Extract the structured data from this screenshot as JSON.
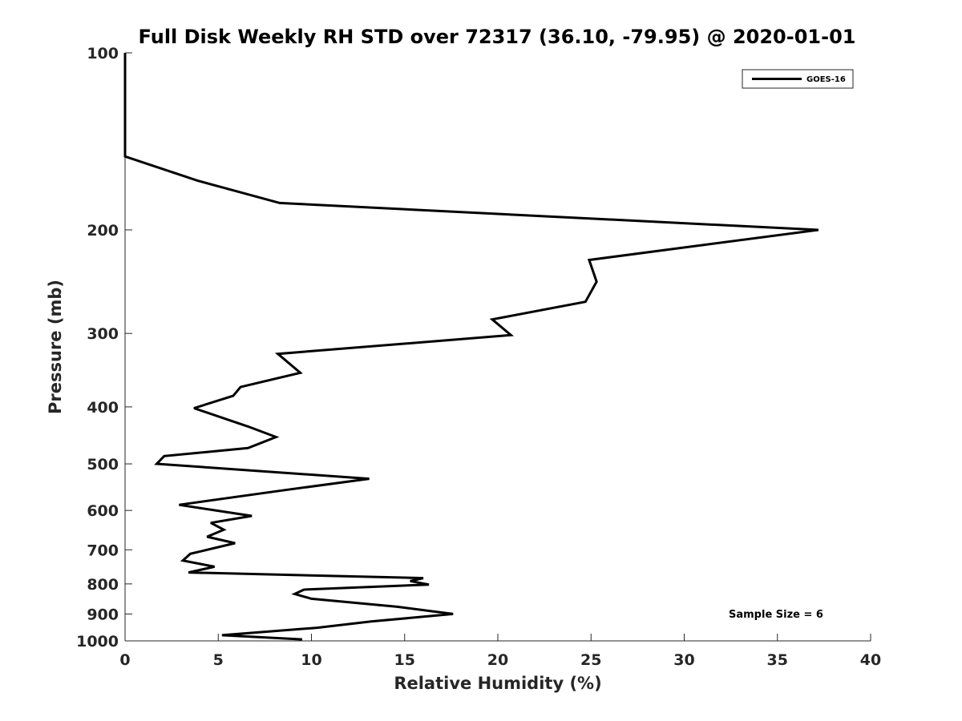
{
  "chart_data": {
    "type": "line",
    "title": "Full Disk Weekly RH STD over 72317 (36.10, -79.95) @ 2020-01-01",
    "xlabel": "Relative Humidity (%)",
    "ylabel": "Pressure (mb)",
    "xlim": [
      0,
      40
    ],
    "ylim": [
      100,
      1000
    ],
    "yscale": "log",
    "y_reversed": true,
    "xticks": [
      0,
      5,
      10,
      15,
      20,
      25,
      30,
      35,
      40
    ],
    "yticks": [
      100,
      200,
      300,
      400,
      500,
      600,
      700,
      800,
      900,
      1000
    ],
    "grid": false,
    "legend_position": "top-right",
    "annotation": "Sample Size = 6",
    "series": [
      {
        "name": "GOES-16",
        "color": "#000000",
        "x": [
          0,
          0,
          0,
          3.9,
          8.3,
          37.2,
          24.9,
          25.3,
          24.7,
          19.7,
          20.7,
          8.2,
          9.4,
          6.2,
          5.8,
          3.7,
          6.6,
          8.1,
          6.6,
          2.1,
          1.7,
          13.1,
          8.4,
          2.9,
          6.8,
          4.6,
          5.3,
          4.4,
          5.9,
          3.5,
          3.1,
          4.8,
          3.4,
          16.0,
          15.3,
          16.3,
          9.6,
          9.1,
          10.0,
          14.6,
          17.6,
          13.2,
          10.3,
          5.2,
          9.5
        ],
        "y": [
          100,
          120,
          150,
          165,
          180,
          200,
          225,
          245,
          265,
          284,
          302,
          325,
          350,
          370,
          383,
          402,
          432,
          450,
          470,
          485,
          500,
          530,
          555,
          587,
          613,
          630,
          647,
          665,
          682,
          711,
          730,
          748,
          765,
          782,
          791,
          802,
          818,
          832,
          848,
          875,
          900,
          927,
          950,
          978,
          994
        ]
      }
    ]
  }
}
